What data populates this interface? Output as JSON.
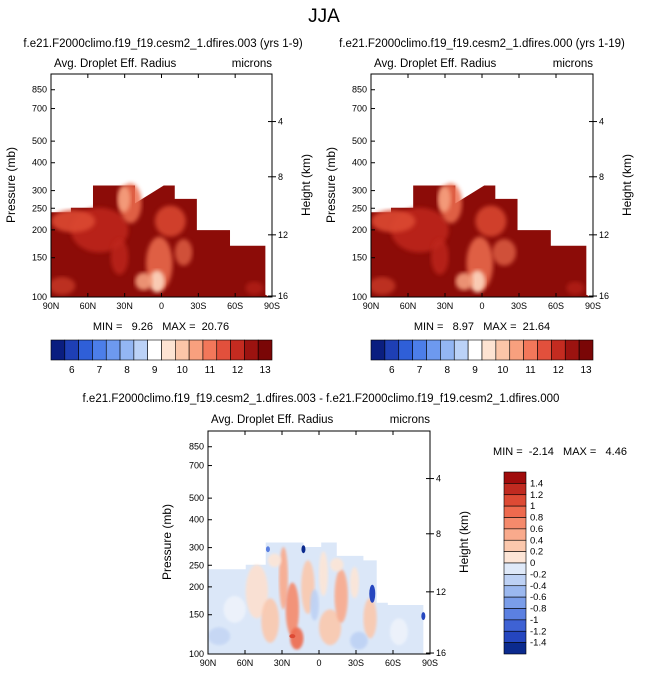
{
  "chart_data": {
    "type": "heatmap",
    "title": "JJA",
    "panels": [
      {
        "id": "left",
        "type": "heatmap",
        "case_title": "f.e21.F2000climo.f19_f19.cesm2_1.dfires.003 (yrs 1-9)",
        "variable": "Avg. Droplet Eff. Radius",
        "units": "microns",
        "ylabel": "Pressure (mb)",
        "ylabel_right": "Height (km)",
        "x_ticks": [
          "90N",
          "60N",
          "30N",
          "0",
          "30S",
          "60S",
          "90S"
        ],
        "y_ticks": [
          "100",
          "150",
          "200",
          "250",
          "300",
          "400",
          "500",
          "700",
          "850"
        ],
        "y_ticks_right": [
          "16",
          "12",
          "8",
          "4"
        ],
        "xlim": [
          90,
          -90
        ],
        "ylim_mb": [
          1000,
          100
        ],
        "stats_label": "MIN =   9.26   MAX =  20.76",
        "min": 9.26,
        "max": 20.76
      },
      {
        "id": "right",
        "type": "heatmap",
        "case_title": "f.e21.F2000climo.f19_f19.cesm2_1.dfires.000 (yrs 1-19)",
        "variable": "Avg. Droplet Eff. Radius",
        "units": "microns",
        "ylabel": "Pressure (mb)",
        "ylabel_right": "Height (km)",
        "x_ticks": [
          "90N",
          "60N",
          "30N",
          "0",
          "30S",
          "60S",
          "90S"
        ],
        "y_ticks": [
          "100",
          "150",
          "200",
          "250",
          "300",
          "400",
          "500",
          "700",
          "850"
        ],
        "y_ticks_right": [
          "16",
          "12",
          "8",
          "4"
        ],
        "xlim": [
          90,
          -90
        ],
        "ylim_mb": [
          1000,
          100
        ],
        "stats_label": "MIN =   8.97   MAX =  21.64",
        "min": 8.97,
        "max": 21.64
      },
      {
        "id": "diff",
        "type": "heatmap",
        "case_title": "f.e21.F2000climo.f19_f19.cesm2_1.dfires.003 - f.e21.F2000climo.f19_f19.cesm2_1.dfires.000",
        "variable": "Avg. Droplet Eff. Radius",
        "units": "microns",
        "ylabel": "Pressure (mb)",
        "ylabel_right": "Height (km)",
        "x_ticks": [
          "90N",
          "60N",
          "30N",
          "0",
          "30S",
          "60S",
          "90S"
        ],
        "y_ticks": [
          "100",
          "150",
          "200",
          "250",
          "300",
          "400",
          "500",
          "700",
          "850"
        ],
        "y_ticks_right": [
          "16",
          "12",
          "8",
          "4"
        ],
        "xlim": [
          90,
          -90
        ],
        "ylim_mb": [
          1000,
          100
        ],
        "stats_label": "MIN =  -2.14   MAX =   4.46",
        "min": -2.14,
        "max": 4.46
      }
    ],
    "colorbar_abs": {
      "orientation": "horizontal",
      "labels": [
        "6",
        "7",
        "8",
        "9",
        "10",
        "11",
        "12",
        "13"
      ],
      "colors": [
        "#0a1e80",
        "#1e3fb5",
        "#2f5fd8",
        "#4c7ee9",
        "#6d99ef",
        "#93b6f3",
        "#bbd2f7",
        "#ffffff",
        "#fde3d2",
        "#fbc5a8",
        "#f8a07e",
        "#f2775a",
        "#e2503c",
        "#c42b20",
        "#9c1310",
        "#7a0606"
      ]
    },
    "colorbar_diff": {
      "orientation": "vertical",
      "labels": [
        "1.4",
        "1.2",
        "1",
        "0.8",
        "0.6",
        "0.4",
        "0.2",
        "0",
        "-0.2",
        "-0.4",
        "-0.6",
        "-0.8",
        "-1",
        "-1.2",
        "-1.4"
      ],
      "colors": [
        "#a00c0c",
        "#c02a20",
        "#dd4a34",
        "#ee6a4e",
        "#f58a6c",
        "#f9aa8c",
        "#fbc8ad",
        "#fde5d6",
        "#dfe9f8",
        "#bdd1f4",
        "#9bb8ef",
        "#7a9de9",
        "#5b80e1",
        "#3e62d4",
        "#2546bf",
        "#0b2a8e"
      ]
    }
  }
}
